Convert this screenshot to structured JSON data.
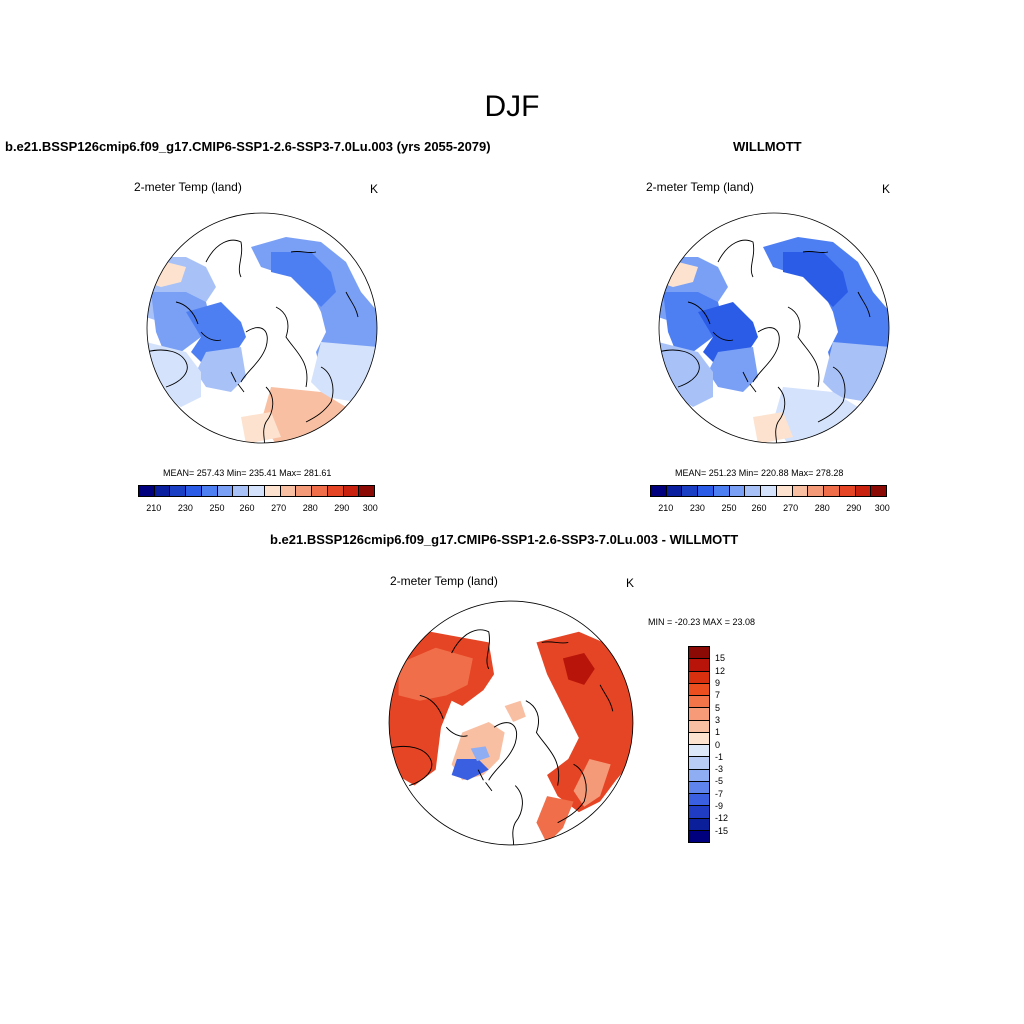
{
  "season": "DJF",
  "panels": {
    "model": {
      "title": "b.e21.BSSP126cmip6.f09_g17.CMIP6-SSP1-2.6-SSP3-7.0Lu.003 (yrs 2055-2079)",
      "variable": "2-meter Temp (land)",
      "units": "K",
      "stats": "MEAN= 257.43  Min= 235.41  Max= 281.61"
    },
    "obs": {
      "title": "WILLMOTT",
      "variable": "2-meter Temp (land)",
      "units": "K",
      "stats": "MEAN= 251.23  Min= 220.88  Max= 278.28"
    },
    "diff": {
      "title": "b.e21.BSSP126cmip6.f09_g17.CMIP6-SSP1-2.6-SSP3-7.0Lu.003 - WILLMOTT",
      "variable": "2-meter Temp (land)",
      "units": "K",
      "stats": "MIN = -20.23 MAX =  23.08"
    }
  },
  "abs_colorbar": {
    "colors": [
      "#00007f",
      "#0a1fa0",
      "#1a3ec4",
      "#2a5ce8",
      "#4e7ff2",
      "#7aa0f5",
      "#a8c2f8",
      "#d4e2fb",
      "#fde3cf",
      "#f9bfa2",
      "#f59a78",
      "#f06f4a",
      "#e54524",
      "#c9230f",
      "#8b0a05"
    ],
    "tick_labels": [
      "210",
      "230",
      "250",
      "260",
      "270",
      "280",
      "290",
      "300"
    ]
  },
  "diff_colorbar": {
    "colors": [
      "#8b0a05",
      "#b8140a",
      "#d9300f",
      "#ec4e1f",
      "#f37449",
      "#f69a78",
      "#f9bfa2",
      "#fde3cf",
      "#dce8f9",
      "#b9ccf6",
      "#8fadf2",
      "#5f85ec",
      "#3a5fe0",
      "#1f3cc2",
      "#0c1f9a",
      "#00007f"
    ],
    "tick_labels": [
      "15",
      "12",
      "9",
      "7",
      "5",
      "3",
      "1",
      "0",
      "-1",
      "-3",
      "-5",
      "-7",
      "-9",
      "-12",
      "-15"
    ]
  },
  "map_colors": {
    "model": {
      "cold": "#4e7ff2",
      "mid": "#7aa0f5",
      "light": "#a8c2f8",
      "pale": "#d4e2fb",
      "warm": "#f9bfa2",
      "warm2": "#fde3cf"
    },
    "obs": {
      "cold": "#2a5ce8",
      "mid": "#4e7ff2",
      "light": "#7aa0f5",
      "pale": "#a8c2f8",
      "warm": "#d4e2fb",
      "warm2": "#fde3cf"
    },
    "diff": {
      "hot": "#e54524",
      "hot2": "#f06f4a",
      "dark": "#b8140a",
      "mid": "#f59a78",
      "light": "#f9bfa2",
      "cool": "#3a5fe0",
      "cool2": "#8fadf2"
    }
  }
}
